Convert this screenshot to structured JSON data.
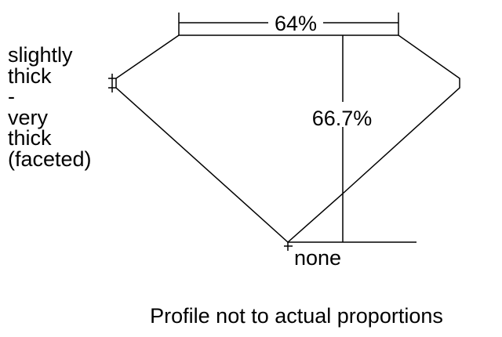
{
  "girdle_label": [
    "slightly",
    "thick",
    "-",
    "very",
    "thick",
    "(faceted)"
  ],
  "table_label": "64%",
  "depth_label": "66.7%",
  "culet_label": "none",
  "caption": "Profile not to actual proportions",
  "line_color": "#000000"
}
